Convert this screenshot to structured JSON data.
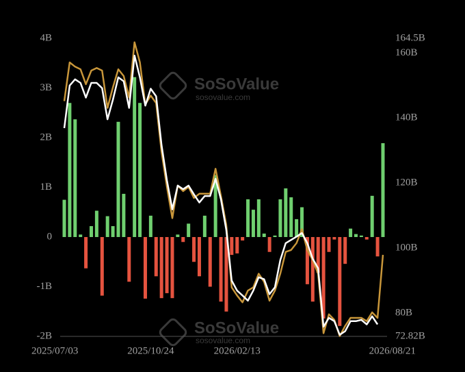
{
  "chart_data": {
    "type": "combo",
    "watermark": {
      "brand": "SoSoValue",
      "url": "sosovalue.com"
    },
    "categories": [
      "2025/07/03",
      null,
      null,
      null,
      null,
      null,
      null,
      null,
      null,
      null,
      null,
      null,
      null,
      null,
      null,
      null,
      "2025/10/24",
      null,
      null,
      null,
      null,
      null,
      null,
      null,
      null,
      null,
      null,
      null,
      null,
      null,
      null,
      null,
      "2026/02/13",
      null,
      null,
      null,
      null,
      null,
      null,
      null,
      null,
      null,
      null,
      null,
      null,
      null,
      null,
      null,
      null,
      null,
      null,
      null,
      null,
      null,
      null,
      null,
      null,
      null,
      null,
      "2026/08/21"
    ],
    "ylim": [
      -2,
      4
    ],
    "yticks": [
      {
        "value": -2,
        "label": "-2B"
      },
      {
        "value": -1,
        "label": "-1B"
      },
      0,
      {
        "value": 1,
        "label": "1B"
      },
      {
        "value": 2,
        "label": "2B"
      },
      {
        "value": 3,
        "label": "3B"
      },
      {
        "value": 4,
        "label": "4B"
      }
    ],
    "y2lim": [
      72.82,
      164.5
    ],
    "y2ticks": [
      {
        "value": 72.82,
        "label": "72.82B"
      },
      {
        "value": 80,
        "label": "80B"
      },
      {
        "value": 100,
        "label": "100B"
      },
      {
        "value": 120,
        "label": "120B"
      },
      {
        "value": 140,
        "label": "140B"
      },
      {
        "value": 160,
        "label": "160B"
      },
      {
        "value": 164.5,
        "label": "164.5B"
      }
    ],
    "grid": false,
    "series": [
      {
        "type": "bar",
        "positive_color": "#6fcf6f",
        "negative_color": "#e5533f",
        "values": [
          0.75,
          2.7,
          2.37,
          0.05,
          -0.63,
          0.22,
          0.53,
          -1.18,
          0.42,
          0.22,
          2.32,
          0.87,
          -0.9,
          3.22,
          2.7,
          -1.24,
          0.43,
          -0.79,
          -1.23,
          -1.13,
          -1.23,
          0.05,
          -0.1,
          0.27,
          -0.5,
          -0.79,
          0.43,
          -1.0,
          1.25,
          -1.3,
          -1.5,
          -0.36,
          -0.33,
          -0.07,
          0.76,
          0.55,
          0.76,
          0.07,
          -0.3,
          0.03,
          0.76,
          0.98,
          0.8,
          0.36,
          0.6,
          -0.95,
          -1.3,
          -0.72,
          -1.64,
          -0.3,
          -0.05,
          -1.79,
          -0.54,
          0.17,
          0.06,
          0.03,
          -0.05,
          0.83,
          -0.39,
          1.89
        ]
      },
      {
        "type": "line",
        "axis": "y2",
        "color": "#c8963a",
        "values": [
          145.2,
          157.1,
          155.8,
          155,
          150.4,
          154.6,
          155.4,
          154.6,
          143.1,
          149.4,
          155,
          152.9,
          146.3,
          163.3,
          157.1,
          144.2,
          146.9,
          144.6,
          129.6,
          118.8,
          109.2,
          119.2,
          117.5,
          118.8,
          115.4,
          116.7,
          116.7,
          116.7,
          124.4,
          116,
          107.1,
          87.9,
          85.4,
          83.3,
          86.9,
          87.9,
          92.1,
          89.6,
          83.8,
          86.9,
          92.1,
          98.8,
          99.4,
          101.5,
          105.8,
          99.4,
          96.3,
          92.1,
          73.8,
          79.6,
          77.9,
          72.9,
          76,
          78.5,
          78.5,
          78.5,
          77.5,
          80.2,
          78.5,
          97.9
        ]
      },
      {
        "type": "line",
        "axis": "y2",
        "color": "#ffffff",
        "values": [
          136.9,
          150,
          151.9,
          150.8,
          146.3,
          150.8,
          150.8,
          149.2,
          139.6,
          145.6,
          152.5,
          151.3,
          143.1,
          159.2,
          152.5,
          143.8,
          149,
          146.7,
          131.7,
          120.8,
          111.9,
          119.2,
          118.1,
          119.2,
          116.5,
          114,
          116,
          116,
          121.3,
          115,
          105.6,
          90,
          86.9,
          85.4,
          83.8,
          86.9,
          91,
          90.4,
          85.8,
          87.9,
          96.3,
          101.5,
          102.5,
          103.5,
          104.6,
          101.5,
          96.7,
          93.8,
          75.8,
          78.5,
          77.5,
          73.3,
          74.4,
          77.5,
          77.5,
          77.9,
          76.5,
          79,
          76.5,
          null
        ]
      }
    ]
  }
}
